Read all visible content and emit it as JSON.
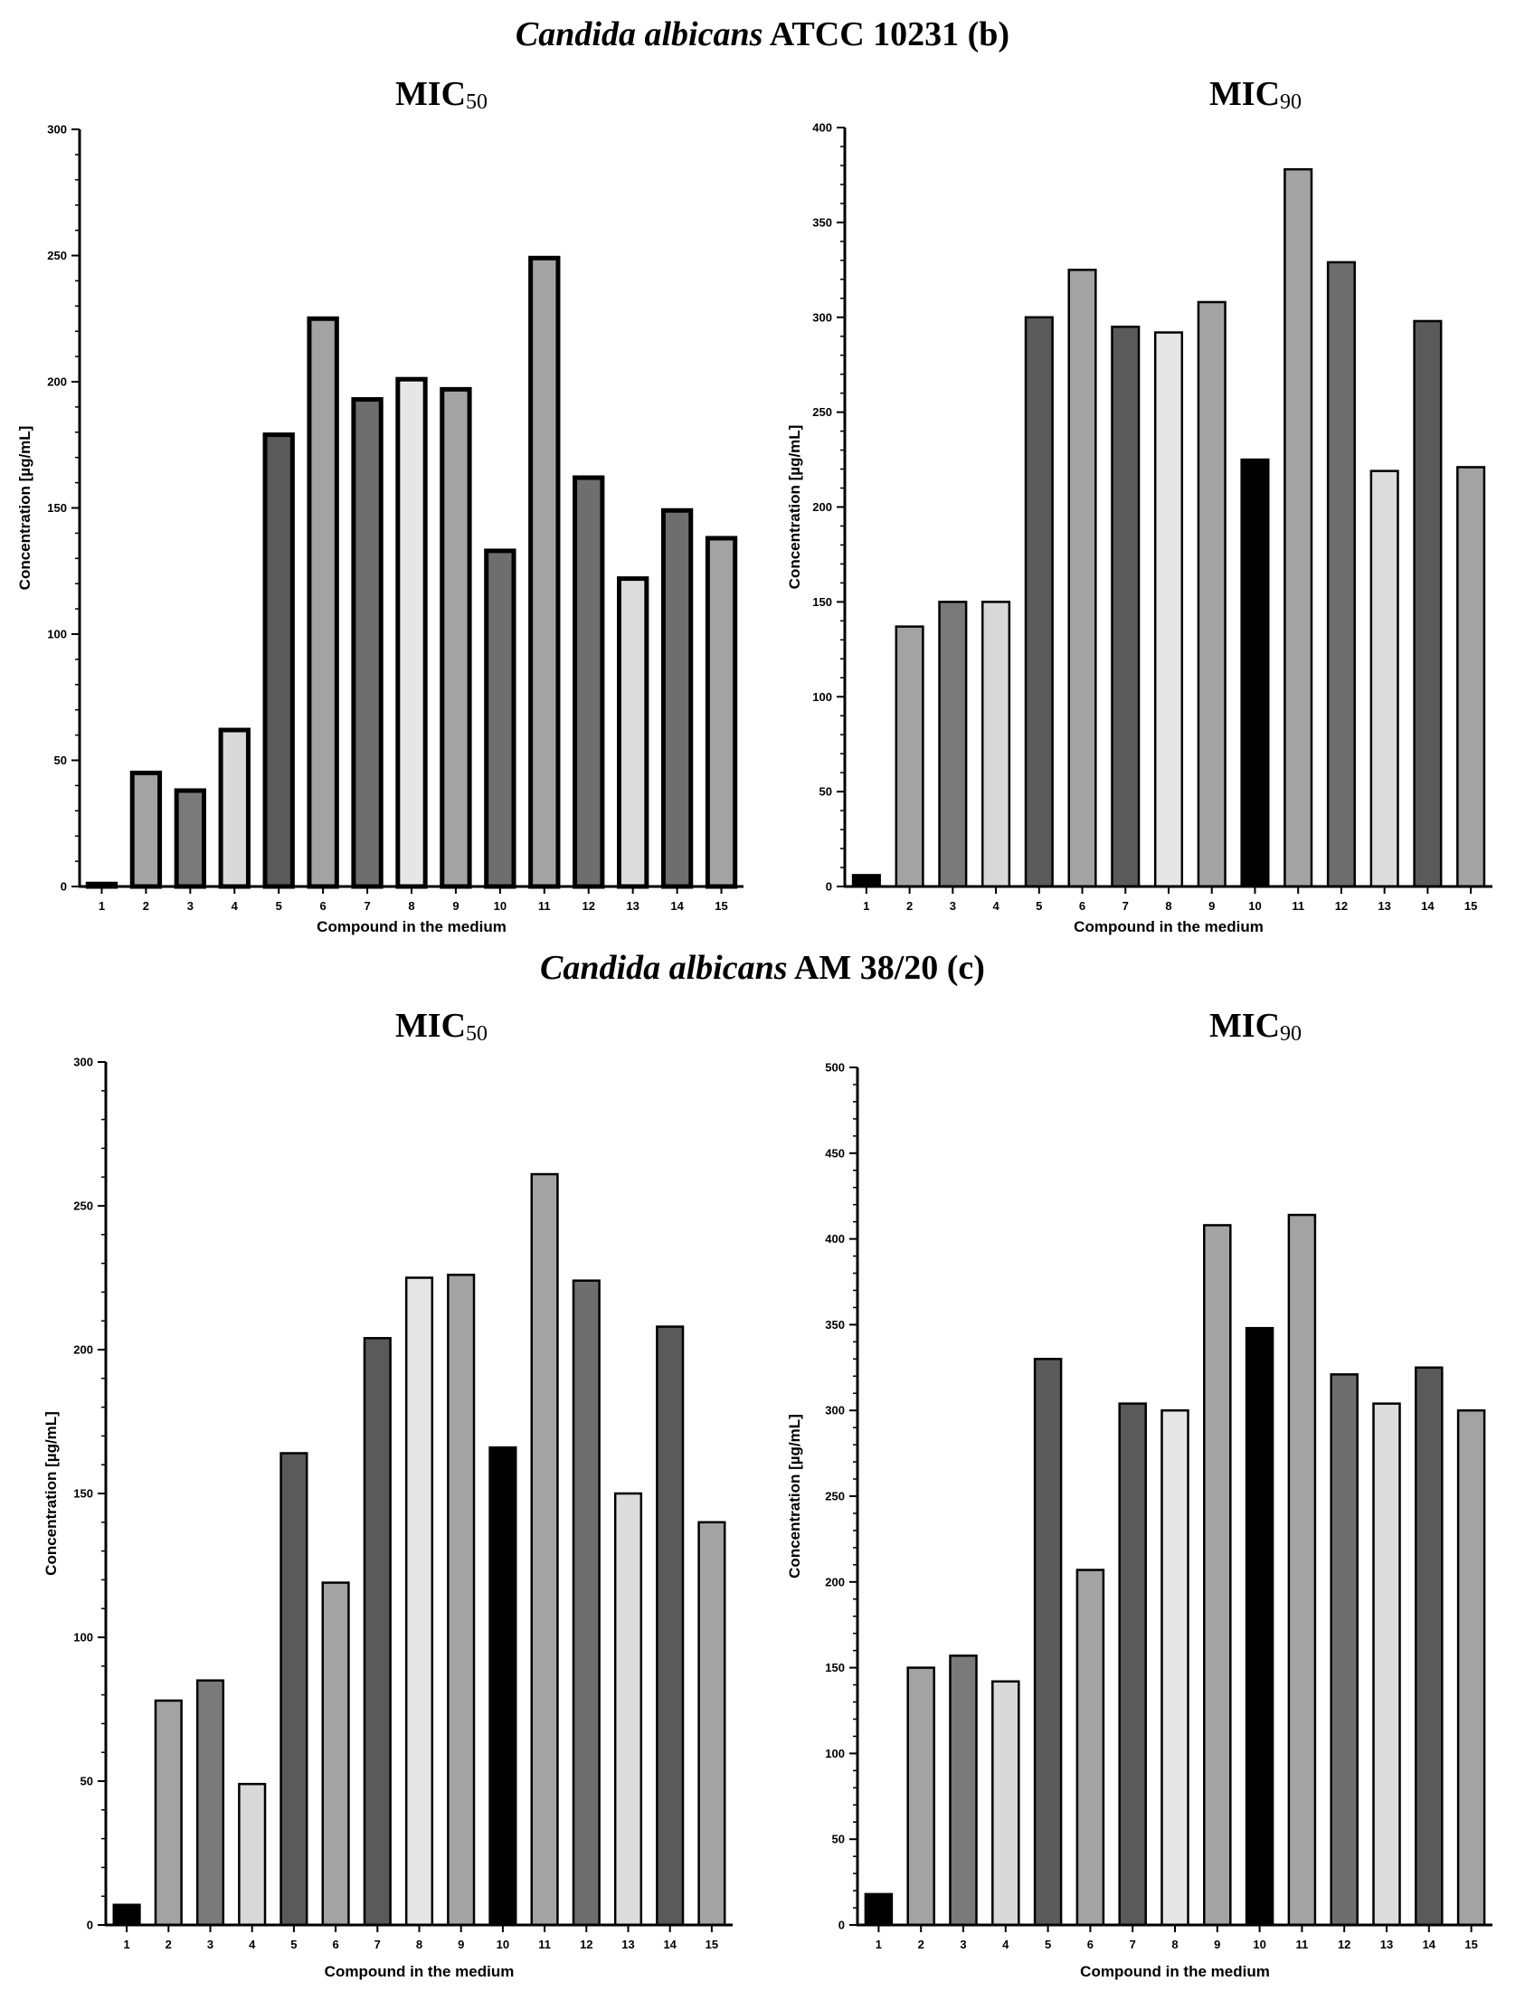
{
  "sections": [
    {
      "organism": "Candida albicans",
      "strain": "ATCC 10231 (b)"
    },
    {
      "organism": "Candida albicans",
      "strain": "AM 38/20 (c)"
    }
  ],
  "chart_data": [
    {
      "type": "bar",
      "title": "MIC",
      "title_sub": "50",
      "xlabel": "Compound in the medium",
      "ylabel": "Concentration [µg/mL]",
      "categories": [
        "1",
        "2",
        "3",
        "4",
        "5",
        "6",
        "7",
        "8",
        "9",
        "10",
        "11",
        "12",
        "13",
        "14",
        "15"
      ],
      "values": [
        1,
        45,
        38,
        62,
        179,
        225,
        193,
        201,
        197,
        133,
        249,
        162,
        122,
        149,
        138
      ],
      "ylim": [
        0,
        300
      ],
      "yticks": [
        0,
        50,
        100,
        150,
        200,
        250,
        300
      ],
      "bar_colors": [
        "#7a7a7a",
        "#a3a3a3",
        "#7a7a7a",
        "#d8d8d8",
        "#5a5a5a",
        "#a3a3a3",
        "#6e6e6e",
        "#e6e6e6",
        "#a3a3a3",
        "#6e6e6e",
        "#a3a3a3",
        "#6e6e6e",
        "#dcdcdc",
        "#6e6e6e",
        "#a3a3a3"
      ],
      "bar_stroke": "thick"
    },
    {
      "type": "bar",
      "title": "MIC",
      "title_sub": "90",
      "xlabel": "Compound in the medium",
      "ylabel": "Concentration [µg/mL]",
      "categories": [
        "1",
        "2",
        "3",
        "4",
        "5",
        "6",
        "7",
        "8",
        "9",
        "10",
        "11",
        "12",
        "13",
        "14",
        "15"
      ],
      "values": [
        6,
        137,
        150,
        150,
        300,
        325,
        295,
        292,
        308,
        225,
        378,
        329,
        219,
        298,
        221
      ],
      "ylim": [
        0,
        400
      ],
      "yticks": [
        0,
        50,
        100,
        150,
        200,
        250,
        300,
        350,
        400
      ],
      "bar_colors": [
        "#000000",
        "#a3a3a3",
        "#7a7a7a",
        "#d8d8d8",
        "#5a5a5a",
        "#a3a3a3",
        "#5a5a5a",
        "#e6e6e6",
        "#a3a3a3",
        "#000000",
        "#a3a3a3",
        "#6e6e6e",
        "#dcdcdc",
        "#5a5a5a",
        "#a3a3a3"
      ],
      "bar_stroke": "thin"
    },
    {
      "type": "bar",
      "title": "MIC",
      "title_sub": "50",
      "xlabel": "Compound in the medium",
      "ylabel": "Concentration [µg/mL]",
      "categories": [
        "1",
        "2",
        "3",
        "4",
        "5",
        "6",
        "7",
        "8",
        "9",
        "10",
        "11",
        "12",
        "13",
        "14",
        "15"
      ],
      "values": [
        7,
        78,
        85,
        49,
        164,
        119,
        204,
        225,
        226,
        166,
        261,
        224,
        150,
        208,
        140
      ],
      "ylim": [
        0,
        300
      ],
      "yticks": [
        0,
        50,
        100,
        150,
        200,
        250,
        300
      ],
      "bar_colors": [
        "#000000",
        "#a3a3a3",
        "#7a7a7a",
        "#d8d8d8",
        "#5a5a5a",
        "#a3a3a3",
        "#5a5a5a",
        "#e6e6e6",
        "#a3a3a3",
        "#000000",
        "#a3a3a3",
        "#6e6e6e",
        "#dcdcdc",
        "#5a5a5a",
        "#a3a3a3"
      ],
      "bar_stroke": "thin"
    },
    {
      "type": "bar",
      "title": "MIC",
      "title_sub": "90",
      "xlabel": "Compound in the medium",
      "ylabel": "Concentration [µg/mL]",
      "categories": [
        "1",
        "2",
        "3",
        "4",
        "5",
        "6",
        "7",
        "8",
        "9",
        "10",
        "11",
        "12",
        "13",
        "14",
        "15"
      ],
      "values": [
        18,
        150,
        157,
        142,
        330,
        207,
        304,
        300,
        408,
        348,
        414,
        321,
        304,
        325,
        300
      ],
      "ylim": [
        0,
        500
      ],
      "yticks": [
        0,
        50,
        100,
        150,
        200,
        250,
        300,
        350,
        400,
        450,
        500
      ],
      "bar_colors": [
        "#000000",
        "#a3a3a3",
        "#7a7a7a",
        "#d8d8d8",
        "#5a5a5a",
        "#a3a3a3",
        "#5a5a5a",
        "#e6e6e6",
        "#a3a3a3",
        "#000000",
        "#a3a3a3",
        "#6e6e6e",
        "#dcdcdc",
        "#5a5a5a",
        "#a3a3a3"
      ],
      "bar_stroke": "thin"
    }
  ]
}
